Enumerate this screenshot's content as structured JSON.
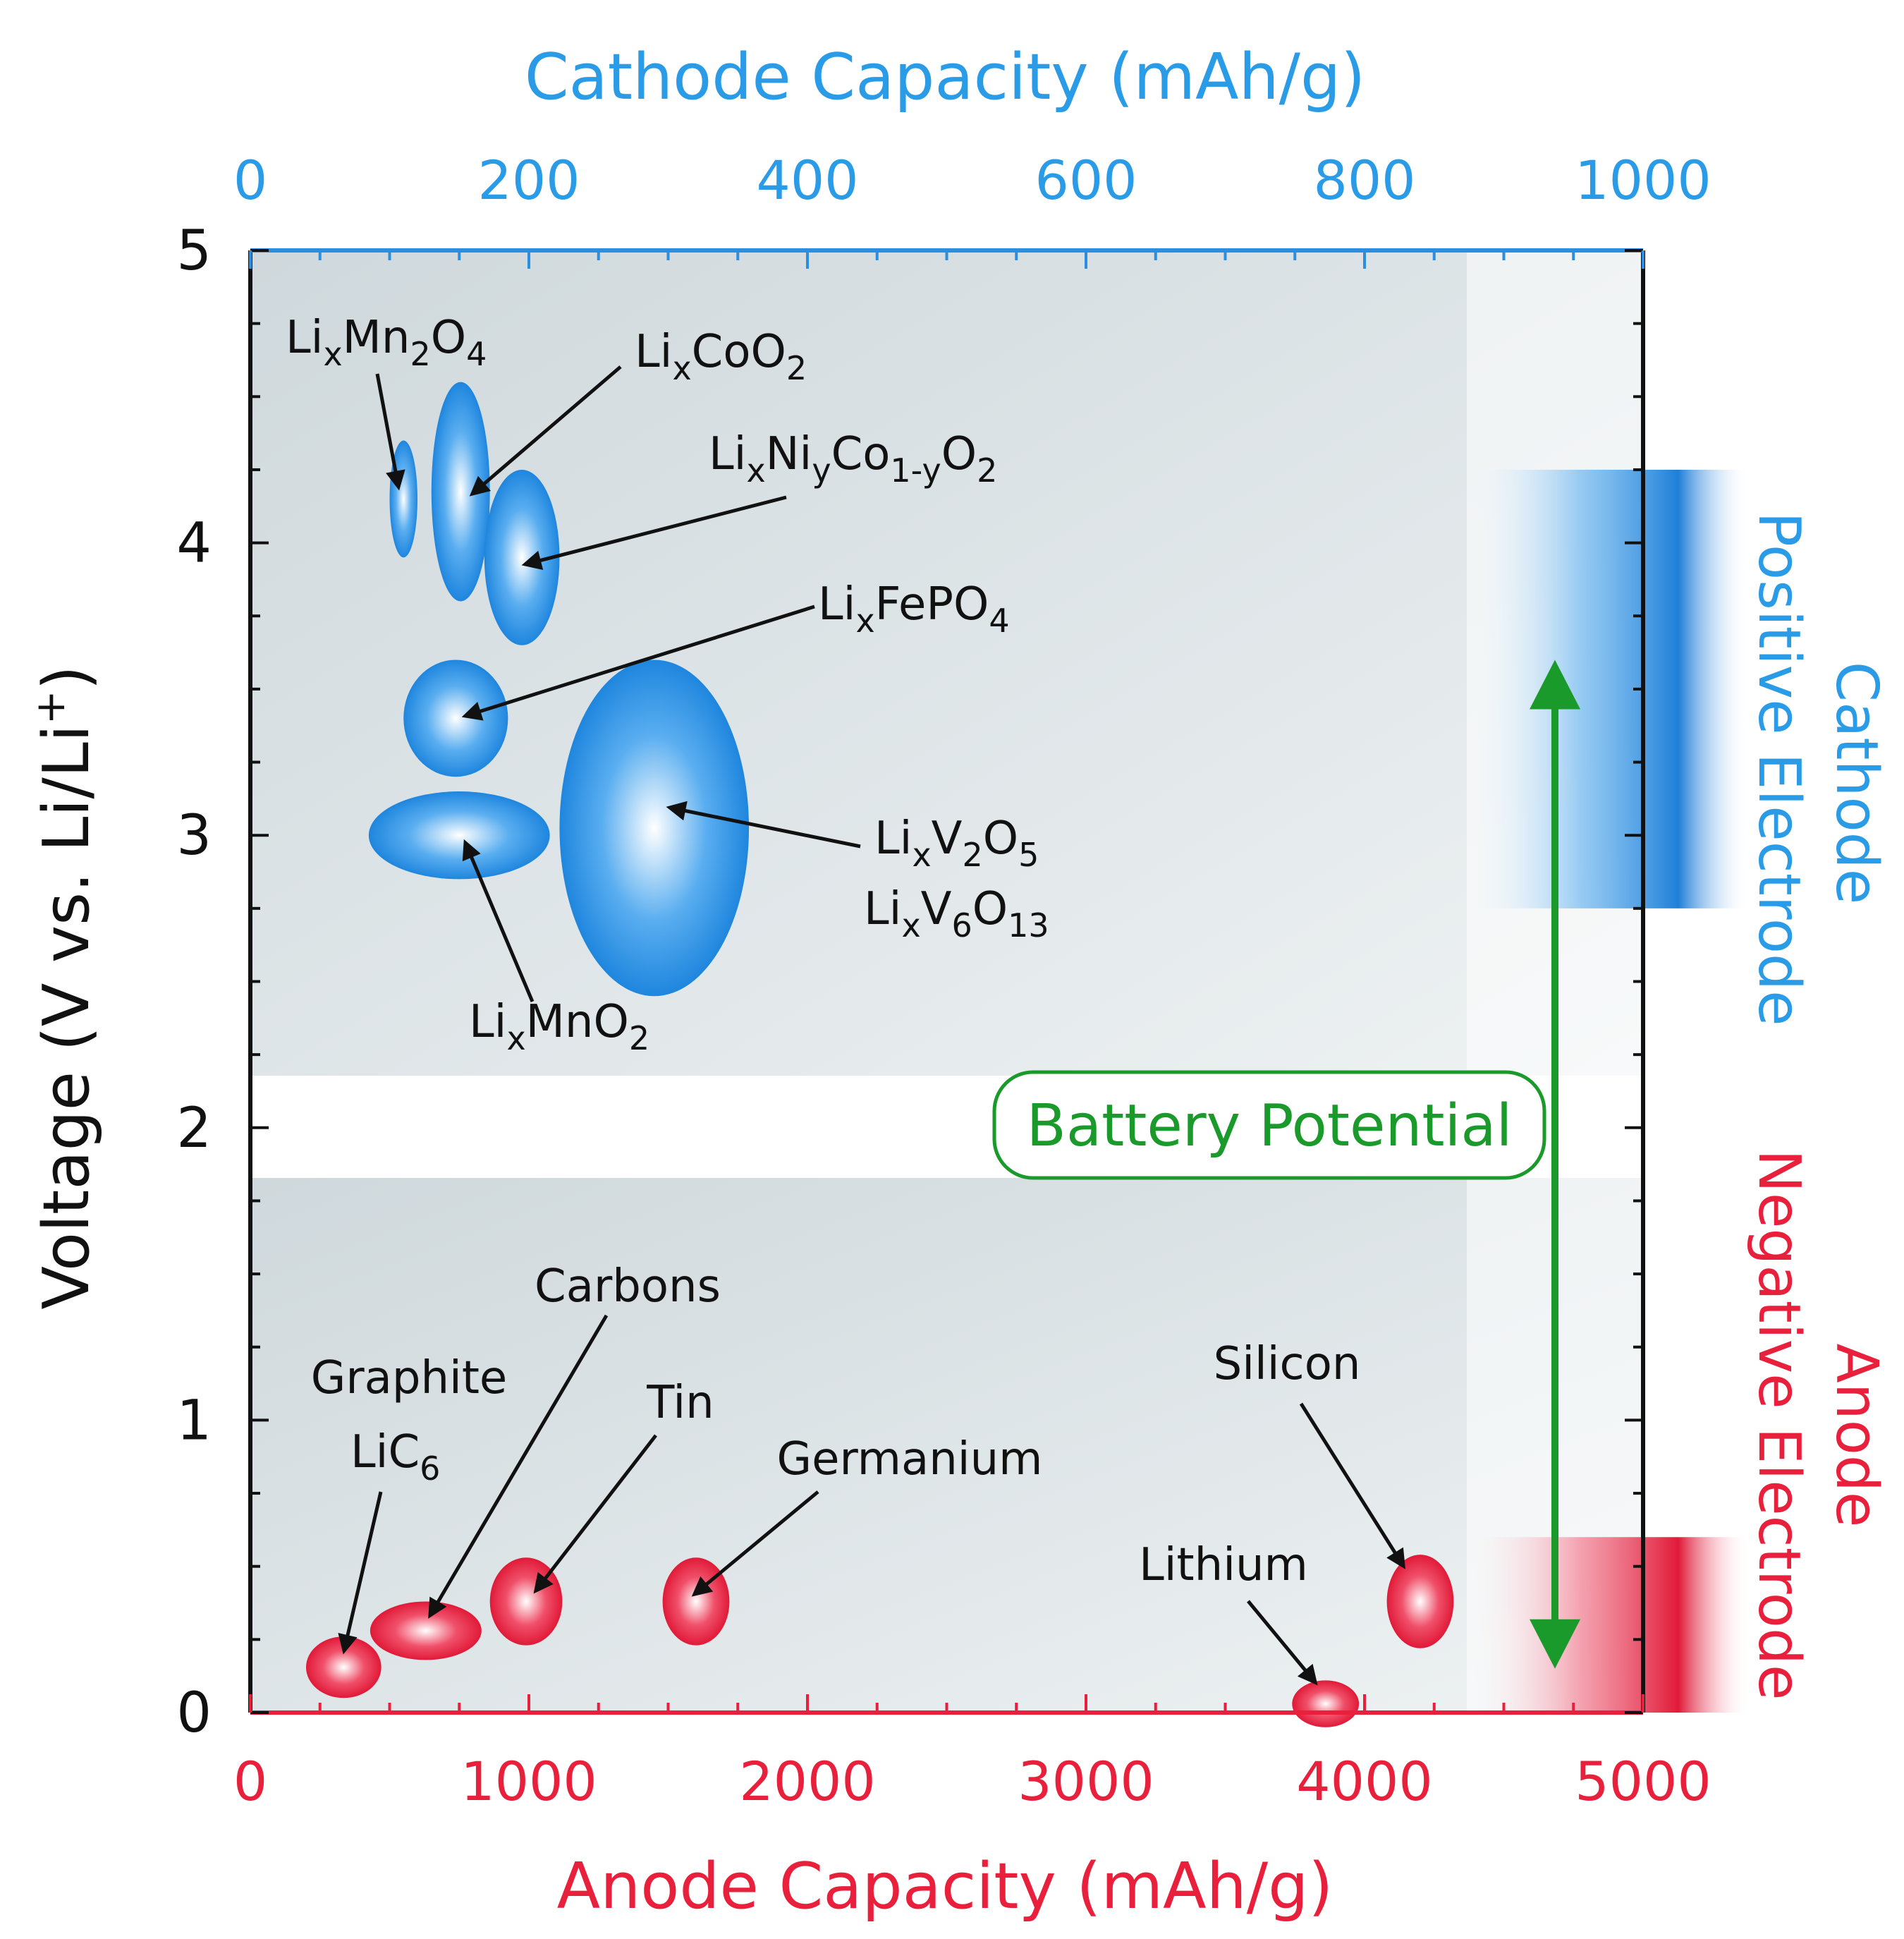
{
  "chart_data": {
    "type": "scatter",
    "title": "",
    "xlabel_top": "Cathode Capacity (mAh/g)",
    "xlabel_bottom": "Anode Capacity (mAh/g)",
    "ylabel": "Voltage (V vs. Li/Li+)",
    "ylabel_parts": {
      "main": "Voltage (V vs. Li/Li",
      "sup": "+",
      "end": ")"
    },
    "ylim": [
      0,
      5
    ],
    "xlim_top": [
      0,
      1000
    ],
    "xlim_bottom": [
      0,
      5000
    ],
    "yticks": [
      "0",
      "1",
      "2",
      "3",
      "4",
      "5"
    ],
    "xticks_top": [
      "0",
      "200",
      "400",
      "600",
      "800",
      "1000"
    ],
    "xticks_bottom": [
      "0",
      "1000",
      "2000",
      "3000",
      "4000",
      "5000"
    ],
    "colors": {
      "cathode": "#2a8fe0",
      "anode": "#e8203c",
      "potential": "#1a9a2a",
      "plot_bg": "#d4dce0"
    },
    "cathode_materials": [
      {
        "name": "LixMn2O4",
        "capacity": 110,
        "voltage": 4.15,
        "cap_range": [
          100,
          120
        ],
        "v_range": [
          3.95,
          4.35
        ]
      },
      {
        "name": "LixCoO2",
        "capacity": 150,
        "voltage": 4.15,
        "cap_range": [
          130,
          172
        ],
        "v_range": [
          3.8,
          4.55
        ]
      },
      {
        "name": "LixNiyCo1-yO2",
        "capacity": 190,
        "voltage": 3.95,
        "cap_range": [
          168,
          222
        ],
        "v_range": [
          3.65,
          4.25
        ]
      },
      {
        "name": "LixFePO4",
        "capacity": 150,
        "voltage": 3.4,
        "cap_range": [
          110,
          185
        ],
        "v_range": [
          3.2,
          3.6
        ]
      },
      {
        "name": "LixMnO2",
        "capacity": 150,
        "voltage": 3.0,
        "cap_range": [
          85,
          215
        ],
        "v_range": [
          2.85,
          3.15
        ]
      },
      {
        "name": "LixV2O5 / LixV6O13",
        "capacity": 290,
        "voltage": 3.05,
        "cap_range": [
          222,
          358
        ],
        "v_range": [
          2.45,
          3.6
        ]
      }
    ],
    "anode_materials": [
      {
        "name": "Graphite LiC6",
        "capacity": 330,
        "voltage": 0.15,
        "cap_range": [
          200,
          470
        ],
        "v_range": [
          0.05,
          0.26
        ]
      },
      {
        "name": "Carbons",
        "capacity": 630,
        "voltage": 0.28,
        "cap_range": [
          430,
          830
        ],
        "v_range": [
          0.18,
          0.38
        ]
      },
      {
        "name": "Tin",
        "capacity": 990,
        "voltage": 0.38,
        "cap_range": [
          860,
          1120
        ],
        "v_range": [
          0.23,
          0.53
        ]
      },
      {
        "name": "Germanium",
        "capacity": 1600,
        "voltage": 0.38,
        "cap_range": [
          1480,
          1720
        ],
        "v_range": [
          0.23,
          0.53
        ]
      },
      {
        "name": "Lithium",
        "capacity": 3860,
        "voltage": 0.03,
        "cap_range": [
          3740,
          3980
        ],
        "v_range": [
          -0.05,
          0.11
        ]
      },
      {
        "name": "Silicon",
        "capacity": 4200,
        "voltage": 0.38,
        "cap_range": [
          4080,
          4320
        ],
        "v_range": [
          0.22,
          0.54
        ]
      }
    ],
    "annotations": {
      "battery_potential": "Battery Potential",
      "potential_range_v": [
        0.15,
        3.6
      ]
    },
    "side_labels": {
      "cathode_line1": "Cathode",
      "cathode_line2": "Positive Electrode",
      "anode_line1": "Anode",
      "anode_line2": "Negative Electrode"
    },
    "labels": {
      "li": "Li",
      "x": "x",
      "y": "y",
      "mn2o4_mn": "Mn",
      "mn2o4_2": "2",
      "mn2o4_o": "O",
      "mn2o4_4": "4",
      "coo2_co": "CoO",
      "coo2_2": "2",
      "nico_ni": "Ni",
      "nico_co": "Co",
      "nico_1y": "1-y",
      "nico_o": "O",
      "nico_2": "2",
      "fepo4_fepo": "FePO",
      "fepo4_4": "4",
      "v2o5_v": "V",
      "v2o5_2": "2",
      "v2o5_o": "O",
      "v2o5_5": "5",
      "v6o13_v": "V",
      "v6o13_6": "6",
      "v6o13_o": "O",
      "v6o13_13": "13",
      "mno2_mno": "MnO",
      "mno2_2": "2",
      "graphite": "Graphite",
      "lic6_lic": "LiC",
      "lic6_6": "6",
      "carbons": "Carbons",
      "tin": "Tin",
      "germanium": "Germanium",
      "lithium": "Lithium",
      "silicon": "Silicon"
    }
  }
}
